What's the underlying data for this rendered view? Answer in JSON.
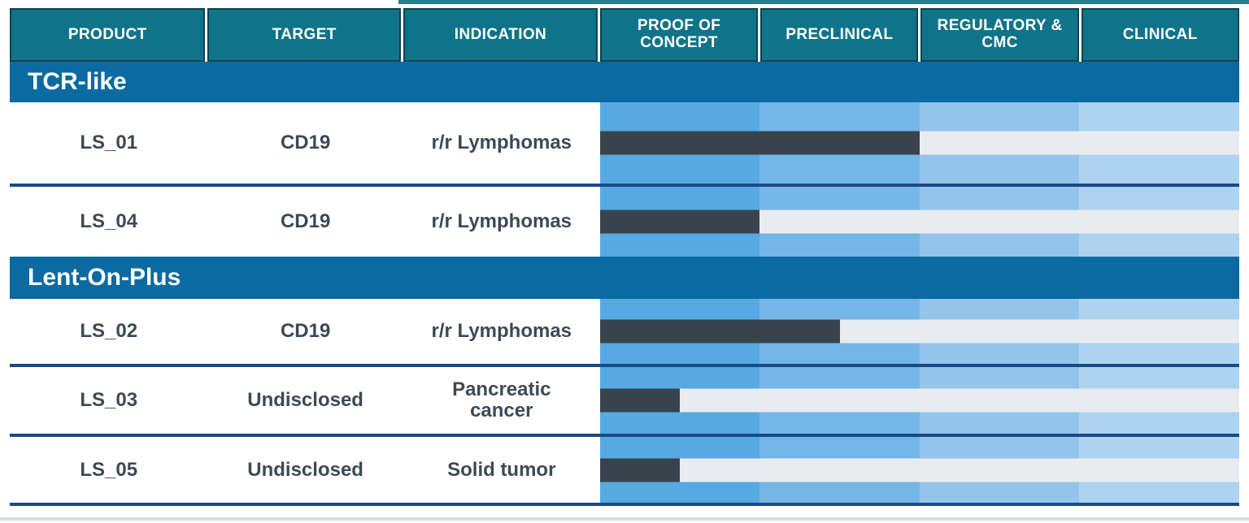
{
  "header": {
    "columns": [
      "PRODUCT",
      "TARGET",
      "INDICATION",
      "PROOF OF CONCEPT",
      "PRECLINICAL",
      "REGULATORY & CMC",
      "CLINICAL"
    ]
  },
  "pipeline": {
    "groups": [
      {
        "label": "TCR-like",
        "rows": [
          {
            "product": "LS_01",
            "target": "CD19",
            "indication": "r/r Lymphomas",
            "progress_pct": 50
          },
          {
            "product": "LS_04",
            "target": "CD19",
            "indication": "r/r Lymphomas",
            "progress_pct": 25
          }
        ]
      },
      {
        "label": "Lent-On-Plus",
        "rows": [
          {
            "product": "LS_02",
            "target": "CD19",
            "indication": "r/r Lymphomas",
            "progress_pct": 37.5
          },
          {
            "product": "LS_03",
            "target": "Undisclosed",
            "indication": "Pancreatic\ncancer",
            "progress_pct": 12.5
          },
          {
            "product": "LS_05",
            "target": "Undisclosed",
            "indication": "Solid tumor",
            "progress_pct": 12.5
          }
        ]
      }
    ]
  },
  "chart_data": {
    "type": "bar",
    "categories": [
      "LS_01",
      "LS_04",
      "LS_02",
      "LS_03",
      "LS_05"
    ],
    "stage_axis": [
      "PROOF OF CONCEPT",
      "PRECLINICAL",
      "REGULATORY & CMC",
      "CLINICAL"
    ],
    "values_stages_completed": [
      2,
      1,
      1.5,
      0.5,
      0.5
    ],
    "values_pct_of_track": [
      50,
      25,
      37.5,
      12.5,
      12.5
    ],
    "xlim": [
      0,
      4
    ],
    "grid": "stage columns shaded light-to-dark blue, no gridlines",
    "legend": "none",
    "groups": {
      "TCR-like": [
        "LS_01",
        "LS_04"
      ],
      "Lent-On-Plus": [
        "LS_02",
        "LS_03",
        "LS_05"
      ]
    }
  },
  "colors": {
    "header_bg": "#0f7489",
    "header_border": "#0a4450",
    "band_bg": "#0c6aa2",
    "stage_poc": "#57a9e1",
    "stage_pre": "#74b6e8",
    "stage_reg": "#93c5ec",
    "stage_clin": "#aed3f0",
    "bar_fill": "#38444d",
    "bar_track": "#e8ecf0",
    "divider": "#1a4a85",
    "text_dark": "#3d4a55",
    "top_line": "#22808f",
    "bottom_line": "#cfe0ef"
  }
}
